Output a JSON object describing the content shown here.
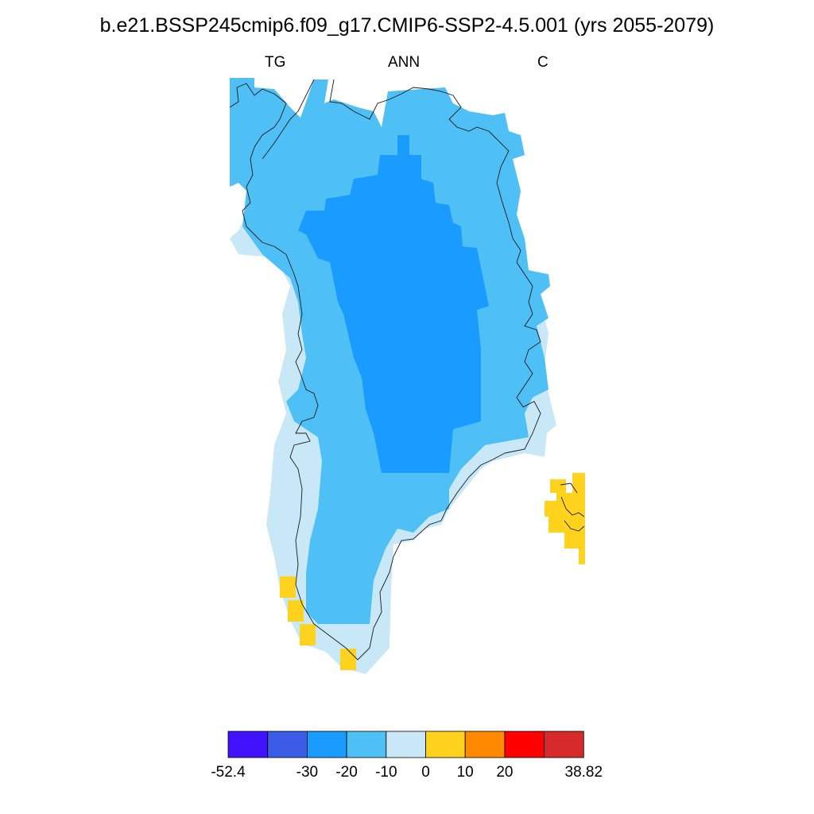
{
  "title": "b.e21.BSSP245cmip6.f09_g17.CMIP6-SSP2-4.5.001 (yrs 2055-2079)",
  "subtitles": {
    "left": "TG",
    "center": "ANN",
    "right": "C"
  },
  "colorbar": {
    "colors": [
      "#4212ff",
      "#3a5ce6",
      "#1a9bff",
      "#4fc0f5",
      "#c8e8f8",
      "#ffd21e",
      "#ff8a00",
      "#ff0000",
      "#d62a2a"
    ],
    "labels": [
      "-52.4",
      "-30",
      "-20",
      "-10",
      "0",
      "10",
      "20",
      "38.82"
    ]
  },
  "map_colors": {
    "ocean_band": "#4fc0f5",
    "interior": "#1a9bff",
    "coastal": "#c8e8f8",
    "warm": "#ffd21e",
    "coastline": "#1a1a1a"
  }
}
